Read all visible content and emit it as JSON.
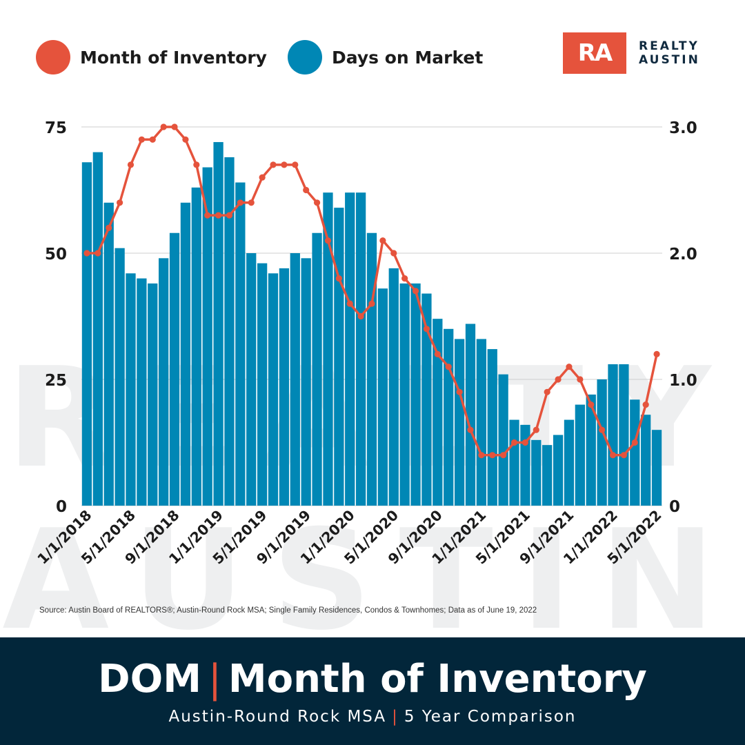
{
  "watermark": {
    "line1": "REALTY",
    "line2": "AUSTIN"
  },
  "legend": {
    "items": [
      {
        "label": "Month of Inventory",
        "color": "#e5533c"
      },
      {
        "label": "Days on Market",
        "color": "#0087b5"
      }
    ]
  },
  "logo": {
    "mark": "RA",
    "word1": "REALTY",
    "word2": "AUSTIN",
    "color": "#e5533c"
  },
  "chart_data": {
    "type": "bar",
    "x_tick_labels": [
      "1/1/2018",
      "5/1/2018",
      "9/1/2018",
      "1/1/2019",
      "5/1/2019",
      "9/1/2019",
      "1/1/2020",
      "5/1/2020",
      "9/1/2020",
      "1/1/2021",
      "5/1/2021",
      "9/1/2021",
      "1/1/2022",
      "5/1/2022"
    ],
    "months": [
      "2018-01",
      "2018-02",
      "2018-03",
      "2018-04",
      "2018-05",
      "2018-06",
      "2018-07",
      "2018-08",
      "2018-09",
      "2018-10",
      "2018-11",
      "2018-12",
      "2019-01",
      "2019-02",
      "2019-03",
      "2019-04",
      "2019-05",
      "2019-06",
      "2019-07",
      "2019-08",
      "2019-09",
      "2019-10",
      "2019-11",
      "2019-12",
      "2020-01",
      "2020-02",
      "2020-03",
      "2020-04",
      "2020-05",
      "2020-06",
      "2020-07",
      "2020-08",
      "2020-09",
      "2020-10",
      "2020-11",
      "2020-12",
      "2021-01",
      "2021-02",
      "2021-03",
      "2021-04",
      "2021-05",
      "2021-06",
      "2021-07",
      "2021-08",
      "2021-09",
      "2021-10",
      "2021-11",
      "2021-12",
      "2022-01",
      "2022-02",
      "2022-03",
      "2022-04",
      "2022-05"
    ],
    "series": [
      {
        "name": "Days on Market",
        "kind": "bar",
        "axis": "left",
        "color": "#0087b5",
        "values": [
          68,
          70,
          60,
          51,
          46,
          45,
          44,
          49,
          54,
          60,
          63,
          67,
          72,
          69,
          64,
          50,
          48,
          46,
          47,
          50,
          49,
          54,
          62,
          59,
          62,
          62,
          54,
          43,
          47,
          44,
          44,
          42,
          37,
          35,
          33,
          36,
          33,
          31,
          26,
          17,
          16,
          13,
          12,
          14,
          17,
          20,
          22,
          25,
          28,
          28,
          21,
          18,
          15
        ]
      },
      {
        "name": "Month of Inventory",
        "kind": "line",
        "axis": "right",
        "color": "#e5533c",
        "values": [
          2.0,
          2.0,
          2.2,
          2.4,
          2.7,
          2.9,
          2.9,
          3.0,
          3.0,
          2.9,
          2.7,
          2.3,
          2.3,
          2.3,
          2.4,
          2.4,
          2.6,
          2.7,
          2.7,
          2.7,
          2.5,
          2.4,
          2.1,
          1.8,
          1.6,
          1.5,
          1.6,
          2.1,
          2.0,
          1.8,
          1.7,
          1.4,
          1.2,
          1.1,
          0.9,
          0.6,
          0.4,
          0.4,
          0.4,
          0.5,
          0.5,
          0.6,
          0.9,
          1.0,
          1.1,
          1.0,
          0.8,
          0.6,
          0.4,
          0.4,
          0.5,
          0.8,
          1.2
        ]
      }
    ],
    "y_left": {
      "min": 0,
      "max": 75,
      "ticks": [
        "0",
        "25",
        "50",
        "75"
      ]
    },
    "y_right": {
      "min": 0,
      "max": 3.0,
      "ticks": [
        "0",
        "1.0",
        "2.0",
        "3.0"
      ]
    },
    "grid": true,
    "legend_position": "top-left"
  },
  "source_note": "Source: Austin Board of REALTORS®; Austin-Round Rock MSA; Single Family Residences, Condos & Townhomes; Data as of June 19, 2022",
  "footer": {
    "title_part1": "DOM",
    "title_separator": "|",
    "title_part2": "Month of Inventory",
    "subtitle_part1": "Austin-Round Rock MSA",
    "subtitle_separator": "|",
    "subtitle_part2": "5 Year Comparison",
    "accent_color": "#e5533c"
  }
}
